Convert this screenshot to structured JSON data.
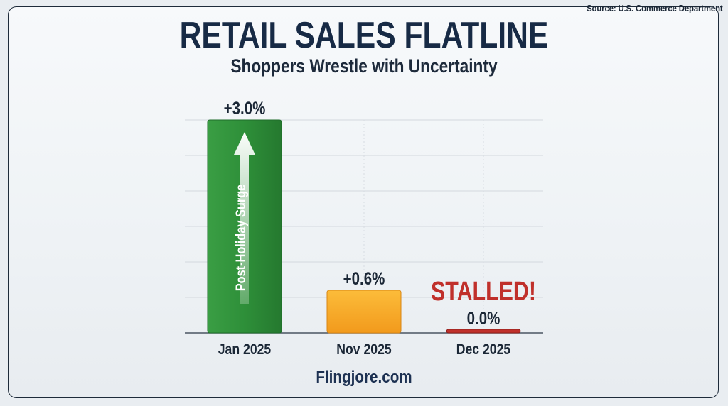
{
  "source": "Source: U.S. Commerce Department",
  "footer": "Flingjore.com",
  "colors": {
    "jan": "#2f9a3e",
    "nov": "#f5a623",
    "dec": "#c0302b",
    "stalled": "#c0302b",
    "text": "#1b2736"
  },
  "chart_data": {
    "type": "bar",
    "title": "RETAIL SALES FLATLINE",
    "subtitle": "Shoppers Wrestle with Uncertainty",
    "categories": [
      "Jan 2025",
      "Nov 2025",
      "Dec 2025"
    ],
    "values": [
      3.0,
      0.6,
      0.0
    ],
    "data_labels": [
      "+3.0%",
      "+0.6%",
      "0.0%"
    ],
    "annotations": {
      "bar_text": "Post-Holiday Surge",
      "callout": "STALLED!"
    },
    "ylim": [
      0,
      3.0
    ],
    "grid": true
  }
}
